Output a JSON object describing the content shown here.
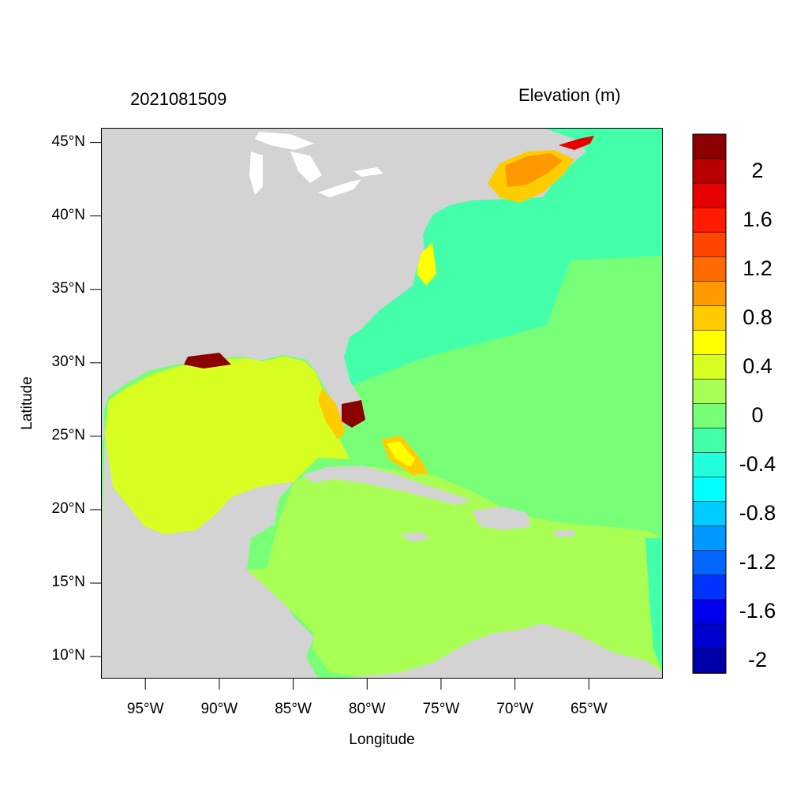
{
  "header": {
    "timestamp": "2021081509",
    "variable": "Elevation (m)"
  },
  "axes": {
    "xlabel": "Longitude",
    "ylabel": "Latitude",
    "xlim_deg_east": [
      -98.0,
      -60.0
    ],
    "ylim_deg_north": [
      8.5,
      46.0
    ],
    "x_ticks": [
      {
        "value": -95,
        "label": "95°W"
      },
      {
        "value": -90,
        "label": "90°W"
      },
      {
        "value": -85,
        "label": "85°W"
      },
      {
        "value": -80,
        "label": "80°W"
      },
      {
        "value": -75,
        "label": "75°W"
      },
      {
        "value": -70,
        "label": "70°W"
      },
      {
        "value": -65,
        "label": "65°W"
      }
    ],
    "y_ticks": [
      {
        "value": 45,
        "label": "45°N"
      },
      {
        "value": 40,
        "label": "40°N"
      },
      {
        "value": 35,
        "label": "35°N"
      },
      {
        "value": 30,
        "label": "30°N"
      },
      {
        "value": 25,
        "label": "25°N"
      },
      {
        "value": 20,
        "label": "20°N"
      },
      {
        "value": 15,
        "label": "15°N"
      },
      {
        "value": 10,
        "label": "10°N"
      }
    ]
  },
  "colorbar": {
    "placement": "right",
    "bins_top_to_bottom": [
      "#8b0000",
      "#b80000",
      "#e60000",
      "#ff1a00",
      "#ff4500",
      "#ff6a00",
      "#ff9900",
      "#ffcc00",
      "#ffff00",
      "#d9ff22",
      "#aaff55",
      "#77ff77",
      "#44ffaa",
      "#22ffdd",
      "#00ffff",
      "#00ccff",
      "#0099ff",
      "#0066ff",
      "#0033ff",
      "#0000ee",
      "#0000cc",
      "#0000aa"
    ],
    "labels": [
      "2",
      "1.6",
      "1.2",
      "0.8",
      "0.4",
      "0",
      "-0.4",
      "-0.8",
      "-1.2",
      "-1.6",
      "-2"
    ]
  },
  "colors": {
    "land": "#d3d3d3",
    "lakes": "#ffffff",
    "gulf_of_mexico": "#d9ff22",
    "caribbean": "#aaff55",
    "open_atlantic": "#77ff77",
    "shelf_atlantic": "#44ffaa",
    "gulf_of_maine": "#ff9900",
    "bay_of_fundy": "#e60000",
    "coastal_high": "#8b0000"
  }
}
